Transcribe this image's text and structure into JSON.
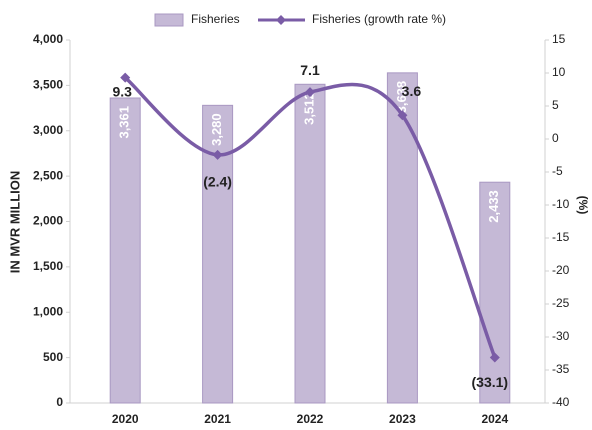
{
  "chart_data": {
    "type": "bar-line",
    "categories": [
      "2020",
      "2021",
      "2022",
      "2023",
      "2024"
    ],
    "ylabel": "IN MVR MILLION",
    "y2label": "(%)",
    "ylim": [
      0,
      4000
    ],
    "yticks": [
      0,
      500,
      {
        "value": 1000,
        "label": "1,000"
      },
      {
        "value": 1500,
        "label": "1,500"
      },
      {
        "value": 2000,
        "label": "2,000"
      },
      {
        "value": 2500,
        "label": "2,500"
      },
      {
        "value": 3000,
        "label": "3,000"
      },
      {
        "value": 3500,
        "label": "3,500"
      },
      {
        "value": 4000,
        "label": "4,000"
      }
    ],
    "y2lim": [
      -40,
      15
    ],
    "y2ticks": [
      -40,
      -35,
      -30,
      -25,
      -20,
      -15,
      -10,
      -5,
      0,
      5,
      10,
      15
    ],
    "legend": "top",
    "series": [
      {
        "name": "Fisheries",
        "type": "bar",
        "color": "#c5b9d6",
        "values": [
          3361,
          3280,
          3512,
          3638,
          2433
        ],
        "value_labels": [
          "3,361",
          "3,280",
          "3,512",
          "3,638",
          "2,433"
        ]
      },
      {
        "name": "Fisheries (growth rate %)",
        "type": "line",
        "axis": "y2",
        "color": "#7a5ca6",
        "values": [
          9.3,
          -2.4,
          7.1,
          3.6,
          -33.1
        ],
        "value_labels": [
          "9.3",
          "(2.4)",
          "7.1",
          "3.6",
          "(33.1)"
        ]
      }
    ]
  }
}
